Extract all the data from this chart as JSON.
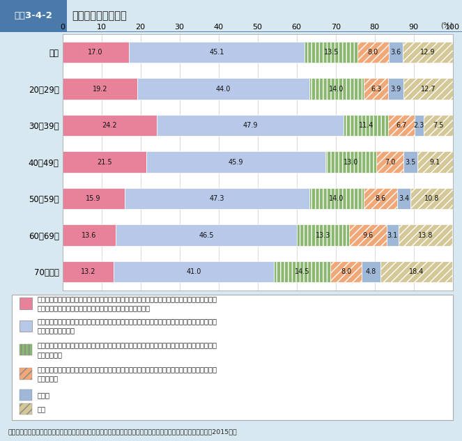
{
  "title_label": "図表3-4-2",
  "title_main": "少子化対策の在り方",
  "categories": [
    "総数",
    "20〜29歳",
    "30〜39歳",
    "40〜49歳",
    "50〜59歳",
    "60〜69歳",
    "70歳以上"
  ],
  "series": [
    {
      "name_line1": "少子化対策（子ども・子育て支援）は社会全体で行うべきものであり、育児に関わらない人の税",
      "name_line2": "や社会保険料の負担が増えても、大幅に拡充するべきである",
      "values": [
        17.0,
        19.2,
        24.2,
        21.5,
        15.9,
        13.6,
        13.2
      ],
      "color": "#e8829a",
      "hatch": ""
    },
    {
      "name_line1": "税や社会保険料の負担を考慮しながら、現行の少子化対策（子ども・子育て支援）をより充実さ",
      "name_line2": "せていくべきである",
      "values": [
        45.1,
        44.0,
        47.9,
        45.9,
        47.3,
        46.5,
        41.0
      ],
      "color": "#b8c8e8",
      "hatch": ""
    },
    {
      "name_line1": "現行の公的な少子化対策（子ども・子育て支援）は十分に充実しているので、現行の対策を維持",
      "name_line2": "すべきである",
      "values": [
        13.5,
        14.0,
        11.4,
        13.0,
        14.0,
        13.3,
        14.5
      ],
      "color": "#8ab870",
      "hatch": "|||"
    },
    {
      "name_line1": "子育ては個々人が行うものであり、少子化対策（子ども・子育て支援）を公的な社会保障で行う",
      "name_line2": "必要はない",
      "values": [
        8.0,
        6.3,
        6.7,
        7.0,
        8.6,
        9.6,
        8.0
      ],
      "color": "#f0a878",
      "hatch": "///"
    },
    {
      "name_line1": "その他",
      "name_line2": "",
      "values": [
        3.6,
        3.9,
        2.3,
        3.5,
        3.4,
        3.1,
        4.8
      ],
      "color": "#a0b8d8",
      "hatch": "==="
    },
    {
      "name_line1": "不詳",
      "name_line2": "",
      "values": [
        12.9,
        12.7,
        7.5,
        9.1,
        10.8,
        13.8,
        18.4
      ],
      "color": "#d4c898",
      "hatch": "///"
    }
  ],
  "xlim": [
    0,
    100
  ],
  "xticks": [
    0,
    10,
    20,
    30,
    40,
    50,
    60,
    70,
    80,
    90,
    100
  ],
  "percent_label": "(%)",
  "source": "資料：厚生労働省政策統括官付政策評価官室「社会保障における公的・私的サービスに関する意識調査報告書」（2015年）",
  "background_color": "#d8e8f0",
  "chart_bg": "#ffffff",
  "title_box_color": "#4a7aaa",
  "title_bg": "#ffffff",
  "header_bg": "#dce8f0"
}
